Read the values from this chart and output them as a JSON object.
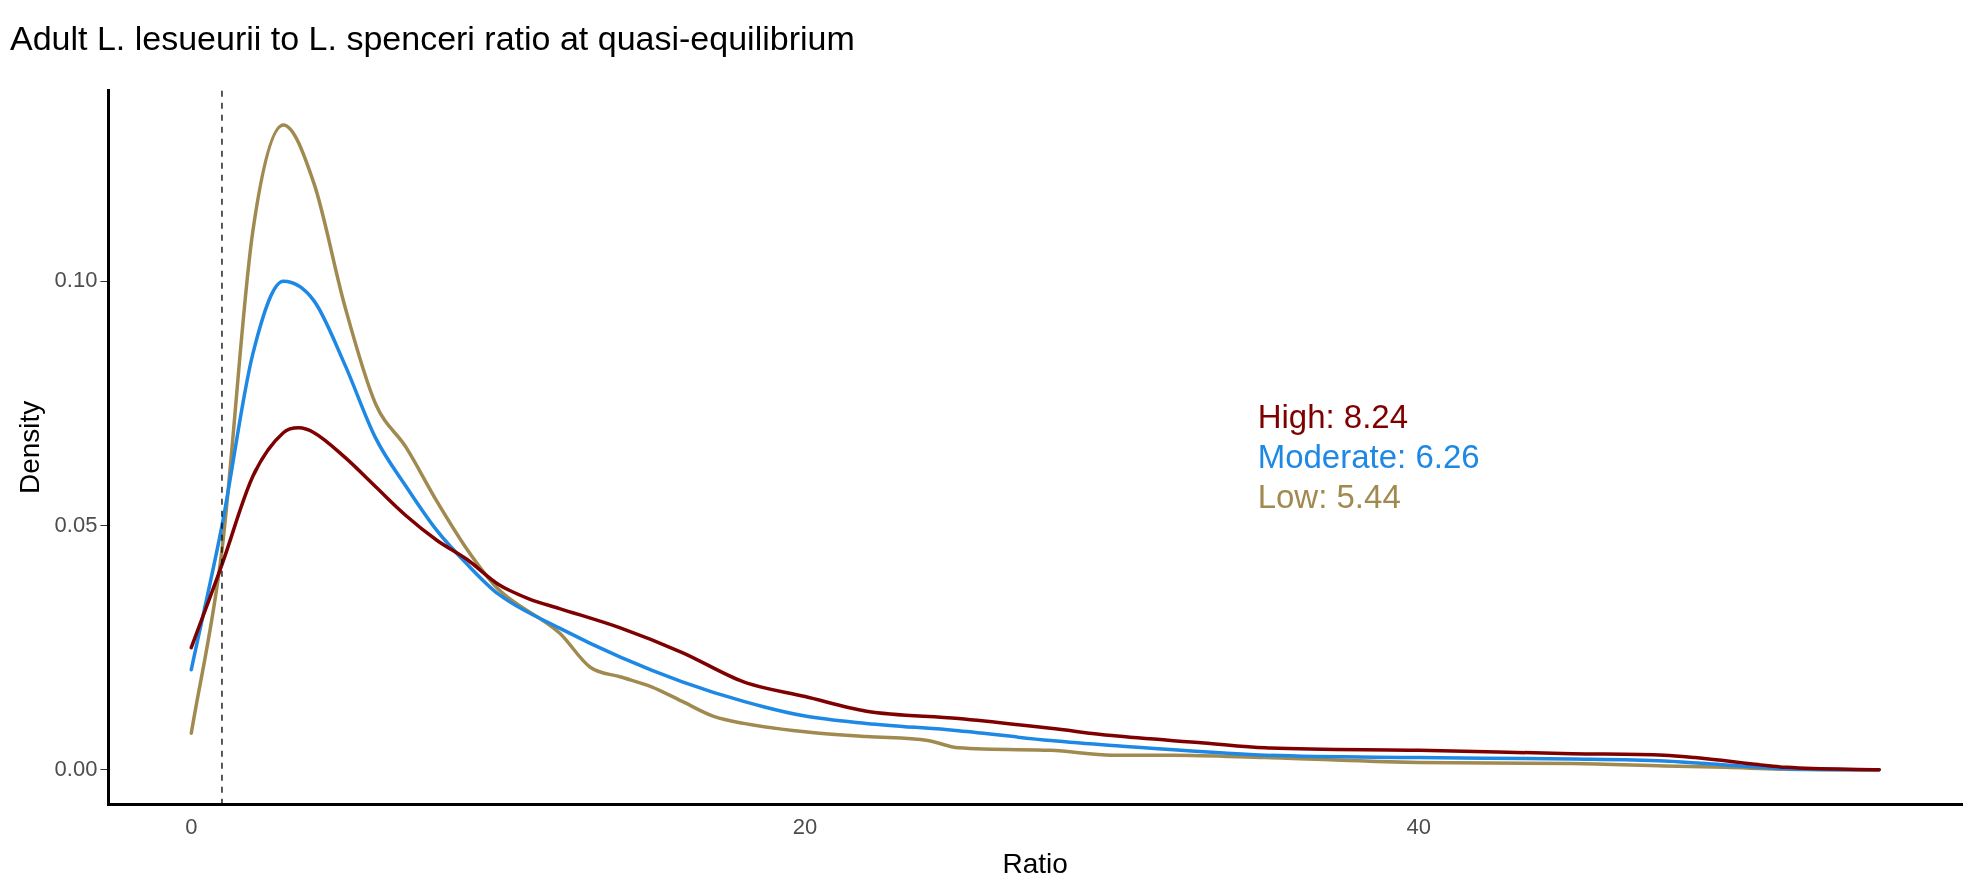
{
  "chart_data": {
    "type": "line",
    "title": "Adult L. lesueurii to L. spenceri ratio at quasi-equilibrium",
    "xlabel": "Ratio",
    "ylabel": "Density",
    "xlim": [
      -2.7,
      57.7
    ],
    "ylim": [
      -0.007,
      0.139
    ],
    "xticks": [
      0,
      20,
      40
    ],
    "yticks": [
      {
        "value": 0,
        "label": "0.00"
      },
      {
        "value": 0.05,
        "label": "0.05"
      },
      {
        "value": 0.1,
        "label": "0.10"
      }
    ],
    "grid": false,
    "legend": false,
    "marker": "none",
    "line_style": "solid",
    "ref_lines": [
      {
        "axis": "x",
        "value": 1,
        "color": "#000000",
        "line_style": "dashed"
      }
    ],
    "series": [
      {
        "name": "High: 8.24",
        "color": "#7f0000",
        "x": [
          0,
          1,
          2,
          3,
          3.5,
          4,
          5,
          6,
          7,
          8,
          9,
          10,
          11,
          12,
          14,
          16,
          18,
          20,
          22,
          25,
          28,
          30,
          33,
          35,
          40,
          45,
          48,
          49,
          52,
          55
        ],
        "values": [
          0.025,
          0.042,
          0.06,
          0.069,
          0.07,
          0.069,
          0.064,
          0.058,
          0.052,
          0.047,
          0.043,
          0.038,
          0.035,
          0.033,
          0.029,
          0.024,
          0.018,
          0.015,
          0.012,
          0.0105,
          0.0085,
          0.007,
          0.0055,
          0.0045,
          0.004,
          0.0033,
          0.003,
          0.0025,
          0.0005,
          0
        ]
      },
      {
        "name": "Moderate: 6.26",
        "color": "#1e88e5",
        "x": [
          0,
          1,
          2,
          3,
          4,
          5,
          6,
          7,
          8,
          9,
          10,
          12,
          14,
          16,
          18,
          20,
          22,
          25,
          28,
          30,
          35,
          40,
          45,
          48,
          50,
          52,
          55
        ],
        "values": [
          0.0205,
          0.05,
          0.085,
          0.1,
          0.096,
          0.083,
          0.068,
          0.058,
          0.049,
          0.042,
          0.036,
          0.029,
          0.023,
          0.018,
          0.014,
          0.011,
          0.0095,
          0.008,
          0.006,
          0.005,
          0.003,
          0.0025,
          0.0022,
          0.0018,
          0.001,
          0.0002,
          0
        ]
      },
      {
        "name": "Low: 5.44",
        "color": "#a08a50",
        "x": [
          0,
          1,
          2,
          3,
          4,
          5,
          6,
          7,
          8,
          9,
          10,
          12,
          13,
          14,
          15,
          16,
          17,
          18,
          20,
          22,
          24,
          25,
          28,
          30,
          32,
          35,
          40,
          45,
          48,
          50,
          52,
          55
        ],
        "values": [
          0.0075,
          0.045,
          0.11,
          0.132,
          0.12,
          0.095,
          0.075,
          0.066,
          0.055,
          0.045,
          0.037,
          0.028,
          0.021,
          0.019,
          0.017,
          0.014,
          0.011,
          0.0095,
          0.0078,
          0.0068,
          0.006,
          0.0045,
          0.004,
          0.003,
          0.003,
          0.0025,
          0.0015,
          0.0013,
          0.0008,
          0.0005,
          0.0001,
          0
        ]
      }
    ]
  }
}
